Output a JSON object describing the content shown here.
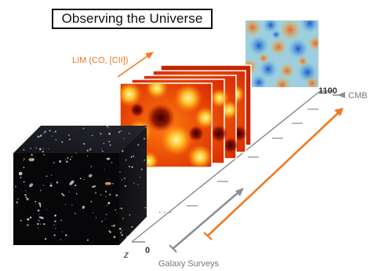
{
  "title": "Observing the Universe",
  "labels": {
    "lim": "LIM (CO, [CII])",
    "cmb": "CMB",
    "z_top": "1100",
    "z_bottom": "0",
    "z_axis": "z",
    "galaxy_surveys": "Galaxy Surveys",
    "ellipsis": ". . ."
  },
  "colors": {
    "lim_accent": "#f07a22",
    "axis": "#8a8a8a",
    "galaxy_arrow": "#8a8f99",
    "cmb_arrow": "#f07a22"
  }
}
